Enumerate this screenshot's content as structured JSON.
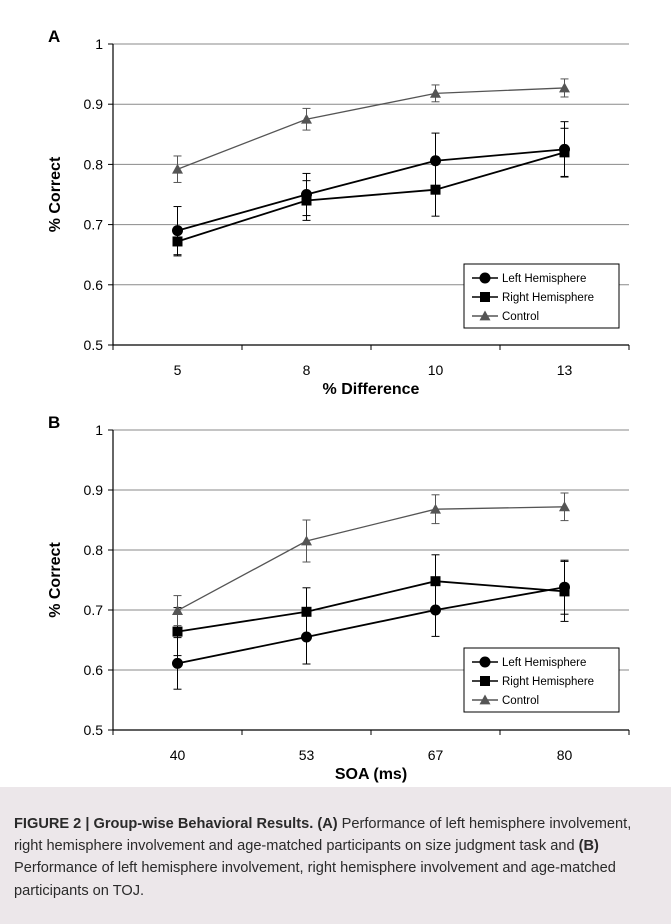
{
  "chart_data": [
    {
      "panel": "A",
      "type": "line",
      "categories": [
        "5",
        "8",
        "10",
        "13"
      ],
      "xlabel": "% Difference",
      "ylabel": "% Correct",
      "ylim": [
        0.5,
        1
      ],
      "yticks": [
        "0.5",
        "0.6",
        "0.7",
        "0.8",
        "0.9",
        "1"
      ],
      "grid": true,
      "legend_position": "bottom-right",
      "series": [
        {
          "name": "Left Hemisphere",
          "marker": "circle",
          "color": "#000000",
          "values": [
            0.69,
            0.75,
            0.806,
            0.825
          ],
          "error": [
            0.04,
            0.035,
            0.046,
            0.046
          ]
        },
        {
          "name": "Right Hemisphere",
          "marker": "square",
          "color": "#000000",
          "values": [
            0.672,
            0.74,
            0.758,
            0.82
          ],
          "error": [
            0.024,
            0.033,
            0.044,
            0.04
          ]
        },
        {
          "name": "Control",
          "marker": "triangle",
          "color": "#555555",
          "values": [
            0.792,
            0.875,
            0.918,
            0.927
          ],
          "error": [
            0.022,
            0.018,
            0.014,
            0.015
          ]
        }
      ]
    },
    {
      "panel": "B",
      "type": "line",
      "categories": [
        "40",
        "53",
        "67",
        "80"
      ],
      "xlabel": "SOA (ms)",
      "ylabel": "% Correct",
      "ylim": [
        0.5,
        1
      ],
      "yticks": [
        "0.5",
        "0.6",
        "0.7",
        "0.8",
        "0.9",
        "1"
      ],
      "grid": true,
      "legend_position": "bottom-right",
      "series": [
        {
          "name": "Left Hemisphere",
          "marker": "circle",
          "color": "#000000",
          "values": [
            0.611,
            0.655,
            0.7,
            0.738
          ],
          "error": [
            0.043,
            0.045,
            0.044,
            0.045
          ]
        },
        {
          "name": "Right Hemisphere",
          "marker": "square",
          "color": "#000000",
          "values": [
            0.664,
            0.697,
            0.748,
            0.731
          ],
          "error": [
            0.04,
            0.04,
            0.044,
            0.05
          ]
        },
        {
          "name": "Control",
          "marker": "triangle",
          "color": "#555555",
          "values": [
            0.699,
            0.815,
            0.868,
            0.872
          ],
          "error": [
            0.025,
            0.035,
            0.024,
            0.023
          ]
        }
      ]
    }
  ],
  "caption": {
    "label": "FIGURE 2 | Group-wise Behavioral Results.",
    "part_a_label": "(A)",
    "part_a_text": "Performance of left hemisphere involvement, right hemisphere involvement and age-matched participants on size judgment task and",
    "part_b_label": "(B)",
    "part_b_text": "Performance of left hemisphere involvement, right hemisphere involvement and age-matched participants on TOJ."
  }
}
